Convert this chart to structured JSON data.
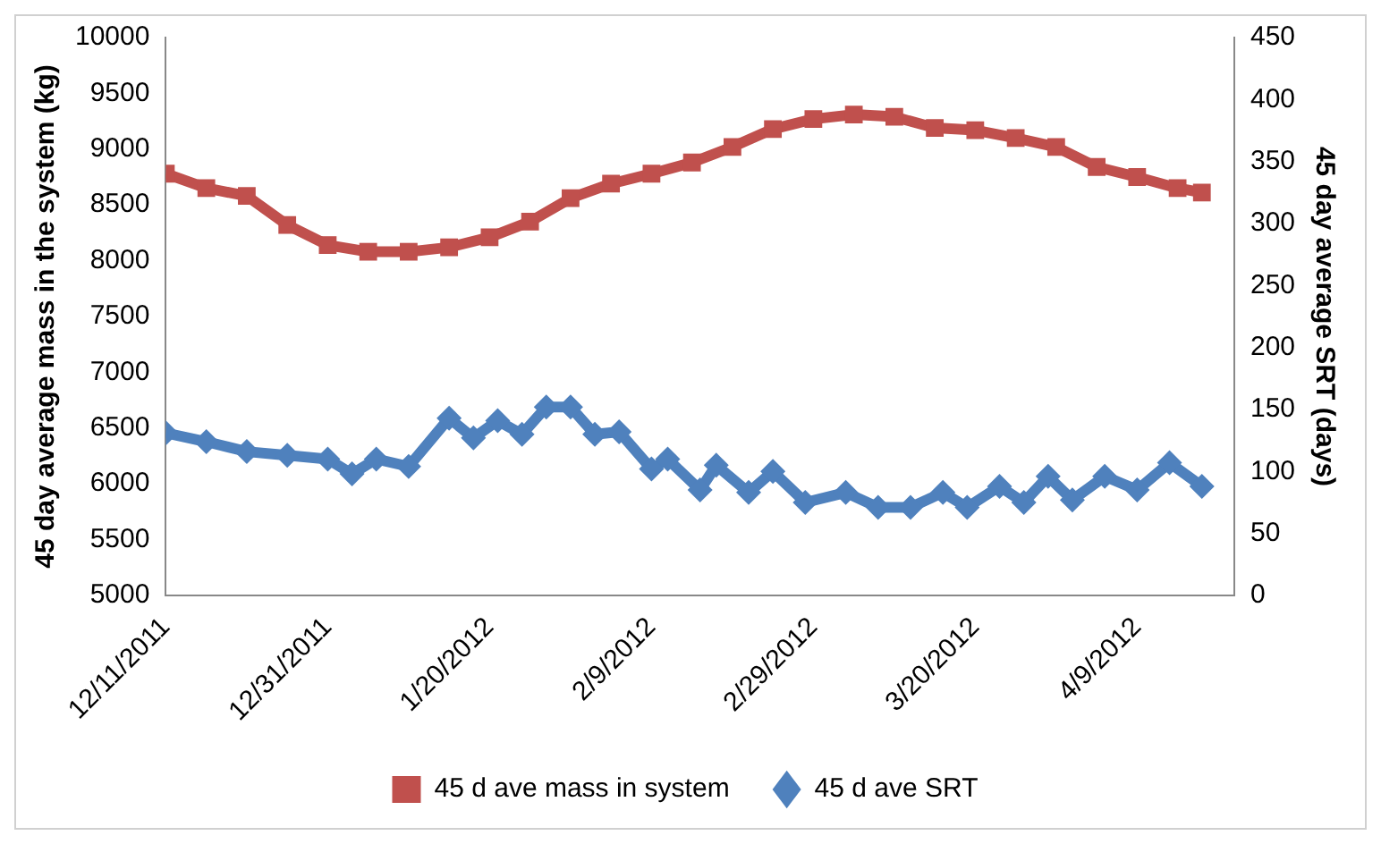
{
  "chart_data": {
    "type": "line",
    "ylabel": "45 day average mass in the system (kg)",
    "y2label": "45 day average SRT (days)",
    "xlim": [
      "2011-12-11",
      "2012-04-21"
    ],
    "xticks": [
      {
        "value": "2011-12-11",
        "label": "12/11/2011"
      },
      {
        "value": "2011-12-31",
        "label": "12/31/2011"
      },
      {
        "value": "2012-01-20",
        "label": "1/20/2012"
      },
      {
        "value": "2012-02-09",
        "label": "2/9/2012"
      },
      {
        "value": "2012-02-29",
        "label": "2/29/2012"
      },
      {
        "value": "2012-03-20",
        "label": "3/20/2012"
      },
      {
        "value": "2012-04-09",
        "label": "4/9/2012"
      }
    ],
    "ylim": [
      5000,
      10000
    ],
    "yticks": [
      5000,
      5500,
      6000,
      6500,
      7000,
      7500,
      8000,
      8500,
      9000,
      9500,
      10000
    ],
    "y2lim": [
      0,
      450
    ],
    "y2ticks": [
      0,
      50,
      100,
      150,
      200,
      250,
      300,
      350,
      400,
      450
    ],
    "grid": false,
    "legend": "bottom",
    "series": [
      {
        "name": "45 d ave mass in system",
        "color": "#c0504d",
        "marker": "square",
        "x": [
          "2011-12-11",
          "2011-12-16",
          "2011-12-21",
          "2011-12-26",
          "2011-12-31",
          "2012-01-05",
          "2012-01-10",
          "2012-01-15",
          "2012-01-20",
          "2012-01-25",
          "2012-01-30",
          "2012-02-04",
          "2012-02-09",
          "2012-02-14",
          "2012-02-19",
          "2012-02-24",
          "2012-02-29",
          "2012-03-05",
          "2012-03-10",
          "2012-03-15",
          "2012-03-20",
          "2012-03-25",
          "2012-03-30",
          "2012-04-04",
          "2012-04-09",
          "2012-04-14",
          "2012-04-17"
        ],
        "values": [
          8780,
          8650,
          8580,
          8320,
          8140,
          8080,
          8080,
          8120,
          8210,
          8350,
          8560,
          8690,
          8780,
          8880,
          9020,
          9180,
          9270,
          9310,
          9290,
          9190,
          9170,
          9100,
          9020,
          8840,
          8750,
          8650,
          8610
        ]
      },
      {
        "name": "45 d ave SRT",
        "color": "#4f81bd",
        "marker": "diamond",
        "axis": "y2",
        "x": [
          "2011-12-11",
          "2011-12-16",
          "2011-12-21",
          "2011-12-26",
          "2011-12-31",
          "2012-01-03",
          "2012-01-06",
          "2012-01-10",
          "2012-01-15",
          "2012-01-18",
          "2012-01-21",
          "2012-01-24",
          "2012-01-27",
          "2012-01-30",
          "2012-02-02",
          "2012-02-05",
          "2012-02-09",
          "2012-02-11",
          "2012-02-15",
          "2012-02-17",
          "2012-02-21",
          "2012-02-24",
          "2012-02-28",
          "2012-03-04",
          "2012-03-08",
          "2012-03-12",
          "2012-03-16",
          "2012-03-19",
          "2012-03-23",
          "2012-03-26",
          "2012-03-29",
          "2012-04-01",
          "2012-04-05",
          "2012-04-09",
          "2012-04-13",
          "2012-04-17"
        ],
        "values": [
          131,
          124,
          116,
          113,
          110,
          98,
          110,
          104,
          143,
          127,
          141,
          130,
          152,
          152,
          130,
          132,
          102,
          110,
          85,
          105,
          83,
          100,
          75,
          83,
          71,
          71,
          83,
          71,
          88,
          75,
          96,
          77,
          96,
          85,
          107,
          88
        ]
      }
    ]
  }
}
